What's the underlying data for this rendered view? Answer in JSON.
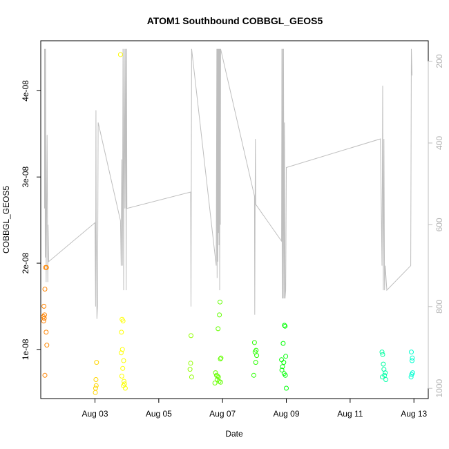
{
  "chart_data": {
    "type": "scatter",
    "title": "ATOM1 Southbound COBBGL_GEOS5",
    "xlabel": "Date",
    "ylabel": "COBBGL_GEOS5",
    "x_tick_labels": [
      "Aug 03",
      "Aug 05",
      "Aug 07",
      "Aug 09",
      "Aug 11",
      "Aug 13"
    ],
    "x_ticks_days": [
      3,
      5,
      7,
      9,
      11,
      13
    ],
    "xlim_days": [
      1.3,
      13.45
    ],
    "ylim": [
      4.3e-09,
      4.58e-08
    ],
    "y_tick_labels": [
      "1e-08",
      "2e-08",
      "3e-08",
      "4e-08"
    ],
    "y_ticks": [
      1e-08,
      2e-08,
      3e-08,
      4e-08
    ],
    "right_axis": {
      "color": "#bebebe",
      "reversed": true,
      "range": [
        1025,
        150
      ],
      "tick_labels": [
        "200",
        "400",
        "600",
        "800",
        "1000"
      ],
      "ticks": [
        200,
        400,
        600,
        800,
        1000
      ]
    },
    "color_scale": "rainbow (orange → yellow → green → cyan) by time",
    "points": [
      [
        1.45,
        1.95e-08
      ],
      [
        1.48,
        1.95e-08
      ],
      [
        1.43,
        1.7e-08
      ],
      [
        1.4,
        1.5e-08
      ],
      [
        1.42,
        1.4e-08
      ],
      [
        1.38,
        1.38e-08
      ],
      [
        1.41,
        1.36e-08
      ],
      [
        1.39,
        1.33e-08
      ],
      [
        1.47,
        1.2e-08
      ],
      [
        1.49,
        1.05e-08
      ],
      [
        1.43,
        7e-09
      ],
      [
        3.05,
        8.5e-09
      ],
      [
        3.03,
        6.5e-09
      ],
      [
        3.04,
        5.8e-09
      ],
      [
        3.02,
        5.5e-09
      ],
      [
        3.01,
        5e-09
      ],
      [
        3.8,
        4.42e-08
      ],
      [
        3.85,
        1.35e-08
      ],
      [
        3.88,
        1.33e-08
      ],
      [
        3.83,
        1.2e-08
      ],
      [
        3.86,
        1e-08
      ],
      [
        3.82,
        9.6e-09
      ],
      [
        3.9,
        8.7e-09
      ],
      [
        3.87,
        7.8e-09
      ],
      [
        3.84,
        6.9e-09
      ],
      [
        3.91,
        6.3e-09
      ],
      [
        3.93,
        6e-09
      ],
      [
        3.89,
        5.8e-09
      ],
      [
        3.95,
        5.5e-09
      ],
      [
        6.01,
        1.16e-08
      ],
      [
        6.0,
        8.4e-09
      ],
      [
        5.98,
        7.7e-09
      ],
      [
        6.03,
        6.8e-09
      ],
      [
        6.92,
        1.55e-08
      ],
      [
        6.9,
        1.4e-08
      ],
      [
        6.86,
        1.24e-08
      ],
      [
        6.95,
        9e-09
      ],
      [
        6.93,
        8.9e-09
      ],
      [
        6.78,
        7.3e-09
      ],
      [
        6.81,
        7e-09
      ],
      [
        6.84,
        6.9e-09
      ],
      [
        6.87,
        6.8e-09
      ],
      [
        6.83,
        6.5e-09
      ],
      [
        6.89,
        6.3e-09
      ],
      [
        6.76,
        6.1e-09
      ],
      [
        6.94,
        6.2e-09
      ],
      [
        8.0,
        1.08e-08
      ],
      [
        8.05,
        9.9e-09
      ],
      [
        8.02,
        9.7e-09
      ],
      [
        8.07,
        9.3e-09
      ],
      [
        8.04,
        8.5e-09
      ],
      [
        7.98,
        7e-09
      ],
      [
        8.94,
        1.28e-08
      ],
      [
        8.96,
        1.27e-08
      ],
      [
        8.9,
        1.07e-08
      ],
      [
        8.85,
        8.8e-09
      ],
      [
        8.92,
        8.5e-09
      ],
      [
        8.98,
        9.2e-09
      ],
      [
        8.88,
        8e-09
      ],
      [
        8.86,
        7.6e-09
      ],
      [
        8.93,
        7.2e-09
      ],
      [
        8.97,
        7e-09
      ],
      [
        9.0,
        5.5e-09
      ],
      [
        12.0,
        9.7e-09
      ],
      [
        12.02,
        9.4e-09
      ],
      [
        12.04,
        8.3e-09
      ],
      [
        12.06,
        7.7e-09
      ],
      [
        12.1,
        7.3e-09
      ],
      [
        12.08,
        7e-09
      ],
      [
        12.01,
        6.8e-09
      ],
      [
        12.12,
        6.5e-09
      ],
      [
        12.92,
        9.7e-09
      ],
      [
        12.95,
        9e-09
      ],
      [
        12.94,
        8.7e-09
      ],
      [
        12.96,
        7.3e-09
      ],
      [
        12.93,
        7.1e-09
      ],
      [
        12.91,
        6.8e-09
      ]
    ],
    "pressure_line": [
      [
        1.42,
        170
      ],
      [
        1.42,
        560
      ],
      [
        1.43,
        170
      ],
      [
        1.44,
        680
      ],
      [
        1.45,
        170
      ],
      [
        1.47,
        740
      ],
      [
        1.5,
        380
      ],
      [
        1.52,
        740
      ],
      [
        1.53,
        600
      ],
      [
        1.55,
        690
      ],
      [
        3.0,
        595
      ],
      [
        3.02,
        800
      ],
      [
        3.03,
        320
      ],
      [
        3.04,
        610
      ],
      [
        3.06,
        830
      ],
      [
        3.08,
        800
      ],
      [
        3.1,
        350
      ],
      [
        3.8,
        590
      ],
      [
        3.82,
        700
      ],
      [
        3.84,
        440
      ],
      [
        3.86,
        700
      ],
      [
        3.88,
        170
      ],
      [
        3.9,
        760
      ],
      [
        3.92,
        170
      ],
      [
        3.94,
        560
      ],
      [
        3.96,
        170
      ],
      [
        3.98,
        760
      ],
      [
        3.99,
        170
      ],
      [
        4.0,
        560
      ],
      [
        6.0,
        520
      ],
      [
        6.01,
        800
      ],
      [
        6.02,
        520
      ],
      [
        6.03,
        170
      ],
      [
        6.8,
        700
      ],
      [
        6.81,
        470
      ],
      [
        6.82,
        170
      ],
      [
        6.83,
        730
      ],
      [
        6.84,
        170
      ],
      [
        6.85,
        690
      ],
      [
        6.86,
        170
      ],
      [
        6.87,
        620
      ],
      [
        6.88,
        170
      ],
      [
        6.89,
        650
      ],
      [
        6.9,
        170
      ],
      [
        6.91,
        760
      ],
      [
        6.92,
        170
      ],
      [
        6.93,
        600
      ],
      [
        6.94,
        170
      ],
      [
        8.0,
        530
      ],
      [
        8.01,
        820
      ],
      [
        8.02,
        550
      ],
      [
        8.03,
        390
      ],
      [
        8.04,
        550
      ],
      [
        8.85,
        640
      ],
      [
        8.86,
        170
      ],
      [
        8.87,
        780
      ],
      [
        8.88,
        170
      ],
      [
        8.9,
        780
      ],
      [
        8.91,
        170
      ],
      [
        8.93,
        780
      ],
      [
        8.94,
        350
      ],
      [
        8.96,
        780
      ],
      [
        8.98,
        760
      ],
      [
        9.0,
        460
      ],
      [
        11.95,
        390
      ],
      [
        12.0,
        700
      ],
      [
        12.02,
        260
      ],
      [
        12.04,
        760
      ],
      [
        12.06,
        390
      ],
      [
        12.08,
        760
      ],
      [
        12.1,
        700
      ],
      [
        12.15,
        760
      ],
      [
        12.9,
        700
      ],
      [
        12.92,
        170
      ],
      [
        12.94,
        235
      ]
    ]
  }
}
